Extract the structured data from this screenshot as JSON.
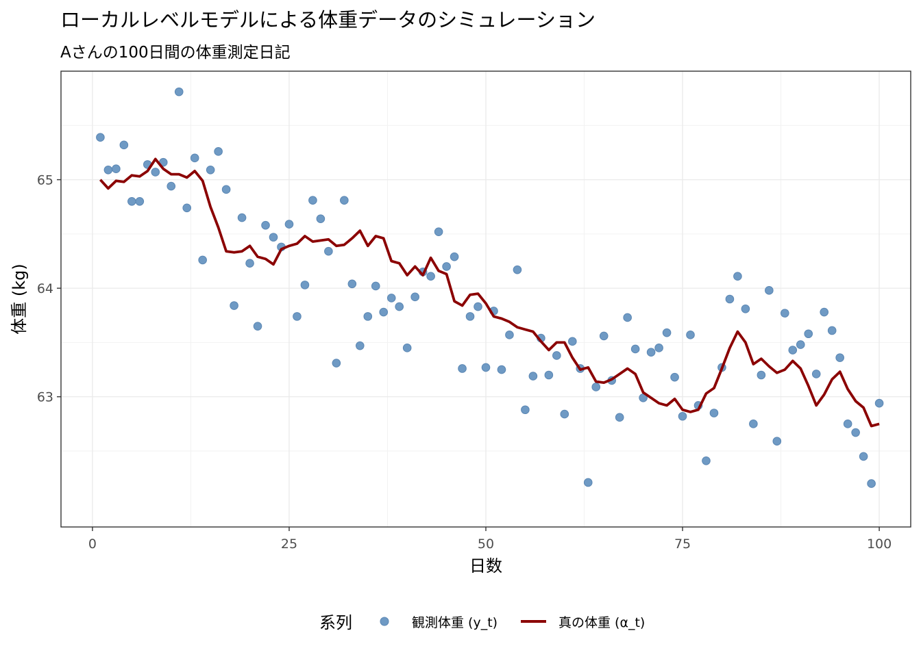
{
  "chart_data": {
    "type": "line",
    "title": "ローカルレベルモデルによる体重データのシミュレーション",
    "subtitle": "Aさんの100日間の体重測定日記",
    "xlabel": "日数",
    "ylabel": "体重 (kg)",
    "xlim": [
      -4,
      104
    ],
    "ylim": [
      61.8,
      66.0
    ],
    "x_ticks": [
      0,
      25,
      50,
      75,
      100
    ],
    "y_ticks": [
      63,
      64,
      65
    ],
    "grid": true,
    "legend": {
      "title": "系列",
      "position": "bottom",
      "entries": [
        "観測体重 (y_t)",
        "真の体重 (α_t)"
      ]
    },
    "series": [
      {
        "name": "観測体重 (y_t)",
        "kind": "scatter",
        "color": "#6f9ac4",
        "x": [
          1,
          2,
          3,
          4,
          5,
          6,
          7,
          8,
          9,
          10,
          11,
          12,
          13,
          14,
          15,
          16,
          17,
          18,
          19,
          20,
          21,
          22,
          23,
          24,
          25,
          26,
          27,
          28,
          29,
          30,
          31,
          32,
          33,
          34,
          35,
          36,
          37,
          38,
          39,
          40,
          41,
          42,
          43,
          44,
          45,
          46,
          47,
          48,
          49,
          50,
          51,
          52,
          53,
          54,
          55,
          56,
          57,
          58,
          59,
          60,
          61,
          62,
          63,
          64,
          65,
          66,
          67,
          68,
          69,
          70,
          71,
          72,
          73,
          74,
          75,
          76,
          77,
          78,
          79,
          80,
          81,
          82,
          83,
          84,
          85,
          86,
          87,
          88,
          89,
          90,
          91,
          92,
          93,
          94,
          95,
          96,
          97,
          98,
          99,
          100
        ],
        "values": [
          65.39,
          65.09,
          65.1,
          65.32,
          64.8,
          64.8,
          65.14,
          65.07,
          65.16,
          64.94,
          65.81,
          64.74,
          65.2,
          64.26,
          65.09,
          65.26,
          64.91,
          63.84,
          64.65,
          64.23,
          63.65,
          64.58,
          64.47,
          64.38,
          64.59,
          63.74,
          64.03,
          64.81,
          64.64,
          64.34,
          63.31,
          64.81,
          64.04,
          63.47,
          63.74,
          64.02,
          63.78,
          63.91,
          63.83,
          63.45,
          63.92,
          64.15,
          64.11,
          64.52,
          64.2,
          64.29,
          63.26,
          63.74,
          63.83,
          63.27,
          63.79,
          63.25,
          63.57,
          64.17,
          62.88,
          63.19,
          63.54,
          63.2,
          63.38,
          62.84,
          63.51,
          63.26,
          62.21,
          63.09,
          63.56,
          63.15,
          62.81,
          63.73,
          63.44,
          62.99,
          63.41,
          63.45,
          63.59,
          63.18,
          62.82,
          63.57,
          62.92,
          62.41,
          62.85,
          63.27,
          63.9,
          64.11,
          63.81,
          62.75,
          63.2,
          63.98,
          62.59,
          63.77,
          63.43,
          63.48,
          63.58,
          63.21,
          63.78,
          63.61,
          63.36,
          62.75,
          62.67,
          62.45,
          62.2,
          62.94
        ]
      },
      {
        "name": "真の体重 (α_t)",
        "kind": "line",
        "color": "#8b0000",
        "x": [
          1,
          2,
          3,
          4,
          5,
          6,
          7,
          8,
          9,
          10,
          11,
          12,
          13,
          14,
          15,
          16,
          17,
          18,
          19,
          20,
          21,
          22,
          23,
          24,
          25,
          26,
          27,
          28,
          29,
          30,
          31,
          32,
          33,
          34,
          35,
          36,
          37,
          38,
          39,
          40,
          41,
          42,
          43,
          44,
          45,
          46,
          47,
          48,
          49,
          50,
          51,
          52,
          53,
          54,
          55,
          56,
          57,
          58,
          59,
          60,
          61,
          62,
          63,
          64,
          65,
          66,
          67,
          68,
          69,
          70,
          71,
          72,
          73,
          74,
          75,
          76,
          77,
          78,
          79,
          80,
          81,
          82,
          83,
          84,
          85,
          86,
          87,
          88,
          89,
          90,
          91,
          92,
          93,
          94,
          95,
          96,
          97,
          98,
          99,
          100
        ],
        "values": [
          65.0,
          64.92,
          64.99,
          64.98,
          65.04,
          65.03,
          65.08,
          65.19,
          65.1,
          65.05,
          65.05,
          65.02,
          65.08,
          64.99,
          64.75,
          64.56,
          64.34,
          64.33,
          64.34,
          64.39,
          64.29,
          64.27,
          64.22,
          64.36,
          64.39,
          64.41,
          64.48,
          64.43,
          64.44,
          64.45,
          64.39,
          64.4,
          64.46,
          64.53,
          64.39,
          64.48,
          64.46,
          64.25,
          64.23,
          64.12,
          64.2,
          64.12,
          64.28,
          64.16,
          64.13,
          63.88,
          63.84,
          63.94,
          63.95,
          63.86,
          63.74,
          63.72,
          63.69,
          63.64,
          63.62,
          63.6,
          63.51,
          63.43,
          63.5,
          63.5,
          63.36,
          63.25,
          63.27,
          63.14,
          63.13,
          63.16,
          63.21,
          63.26,
          63.21,
          63.04,
          62.99,
          62.94,
          62.92,
          62.98,
          62.88,
          62.86,
          62.88,
          63.03,
          63.08,
          63.26,
          63.45,
          63.6,
          63.5,
          63.3,
          63.35,
          63.28,
          63.22,
          63.25,
          63.33,
          63.26,
          63.1,
          62.92,
          63.02,
          63.16,
          63.23,
          63.07,
          62.96,
          62.9,
          62.73,
          62.75
        ]
      }
    ]
  }
}
